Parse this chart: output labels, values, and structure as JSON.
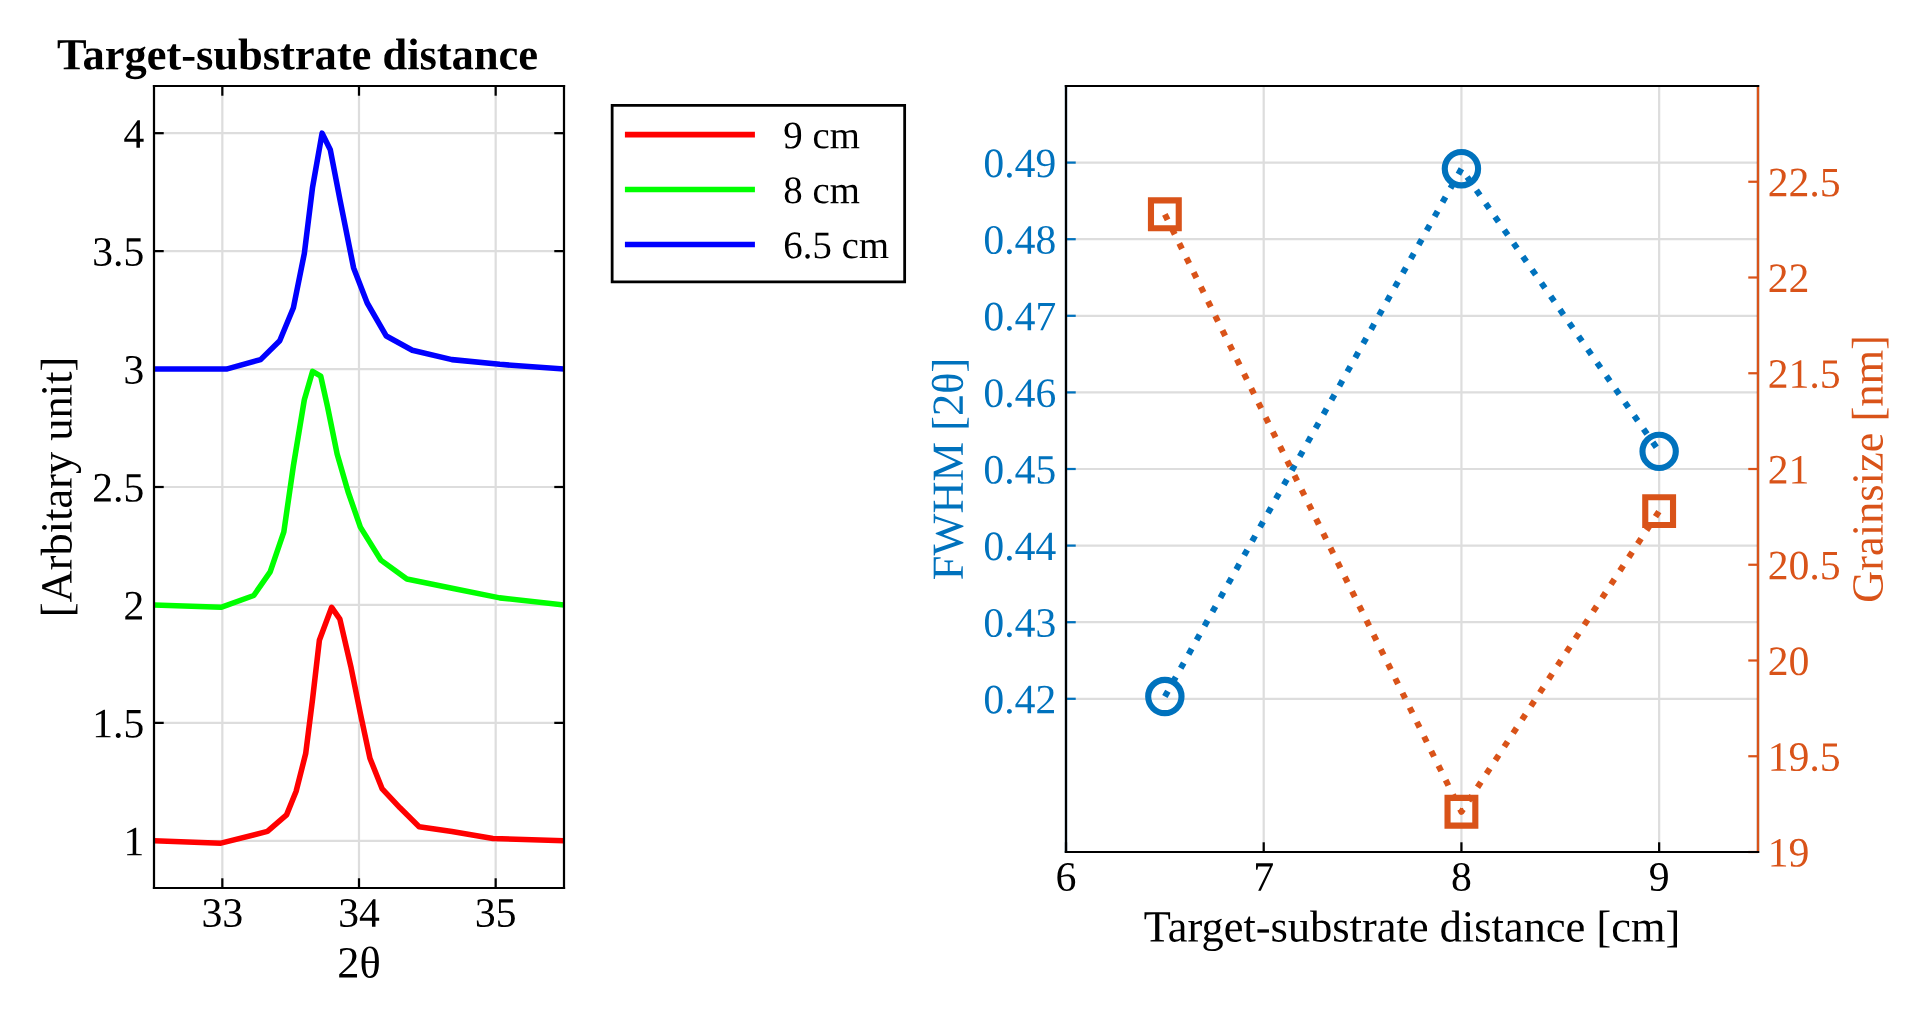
{
  "chart_data": [
    {
      "type": "line",
      "title": "Target-substrate distance",
      "xlabel": "2θ",
      "ylabel": "[Arbitary unit]",
      "xlim": [
        32.5,
        35.5
      ],
      "xticks": [
        33,
        34,
        35
      ],
      "ylim": [
        0.8,
        4.2
      ],
      "yticks": [
        1,
        1.5,
        2,
        2.5,
        3,
        3.5,
        4
      ],
      "grid": true,
      "legend": "top right",
      "line_style": "solid",
      "series": [
        {
          "name": "9 cm",
          "color": "#ff0000",
          "x": [
            32.5,
            32.99,
            33.33,
            33.47,
            33.54,
            33.61,
            33.66,
            33.71,
            33.8,
            33.86,
            33.94,
            34.01,
            34.08,
            34.17,
            34.3,
            34.44,
            34.68,
            34.98,
            35.5
          ],
          "values": [
            1.0,
            0.99,
            1.04,
            1.11,
            1.21,
            1.37,
            1.6,
            1.85,
            1.99,
            1.94,
            1.74,
            1.54,
            1.35,
            1.22,
            1.14,
            1.06,
            1.04,
            1.01,
            1.0
          ]
        },
        {
          "name": "8 cm",
          "color": "#00ff00",
          "x": [
            32.5,
            32.99,
            33.23,
            33.35,
            33.45,
            33.52,
            33.6,
            33.66,
            33.72,
            33.77,
            33.84,
            33.92,
            34.01,
            34.16,
            34.35,
            34.69,
            35.03,
            35.5
          ],
          "values": [
            2.0,
            1.99,
            2.04,
            2.14,
            2.31,
            2.59,
            2.87,
            2.99,
            2.97,
            2.84,
            2.64,
            2.48,
            2.33,
            2.19,
            2.11,
            2.07,
            2.03,
            2.0
          ]
        },
        {
          "name": "6.5 cm",
          "color": "#0000ff",
          "x": [
            32.5,
            33.03,
            33.28,
            33.42,
            33.52,
            33.6,
            33.66,
            33.73,
            33.79,
            33.86,
            33.96,
            34.06,
            34.2,
            34.39,
            34.68,
            35.03,
            35.5
          ],
          "values": [
            3.0,
            3.0,
            3.04,
            3.12,
            3.26,
            3.49,
            3.77,
            4.0,
            3.93,
            3.72,
            3.43,
            3.28,
            3.14,
            3.08,
            3.04,
            3.02,
            3.0
          ]
        }
      ]
    },
    {
      "type": "line",
      "xlabel": "Target-substrate distance [cm]",
      "ylabel": "FWHM [2θ]",
      "y2label": "Grainsize [nm]",
      "xlim": [
        6,
        9.5
      ],
      "xticks": [
        6,
        7,
        8,
        9
      ],
      "ylim": [
        0.4,
        0.5
      ],
      "yticks": [
        0.42,
        0.43,
        0.44,
        0.45,
        0.46,
        0.47,
        0.48,
        0.49
      ],
      "y2lim": [
        19,
        23
      ],
      "y2ticks": [
        19,
        19.5,
        20,
        20.5,
        21,
        21.5,
        22,
        22.5
      ],
      "grid": true,
      "line_style": "dotted",
      "series": [
        {
          "color": "#0072bd",
          "marker": "circle",
          "x": [
            6.5,
            8,
            9
          ],
          "values": [
            0.4203,
            0.4892,
            0.4523
          ]
        },
        {
          "color": "#d95319",
          "marker": "square",
          "axis": "y2",
          "x": [
            6.5,
            8,
            9
          ],
          "values": [
            22.33,
            19.21,
            20.78
          ]
        }
      ]
    }
  ]
}
